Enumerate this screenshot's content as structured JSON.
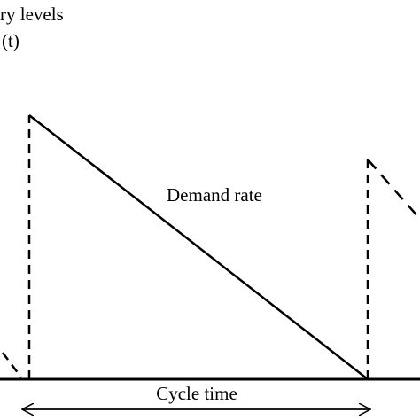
{
  "axis_label_lines": [
    "ry levels",
    "(t)"
  ],
  "annotations": {
    "demand": "Demand rate",
    "cycle": "Cycle time"
  }
}
